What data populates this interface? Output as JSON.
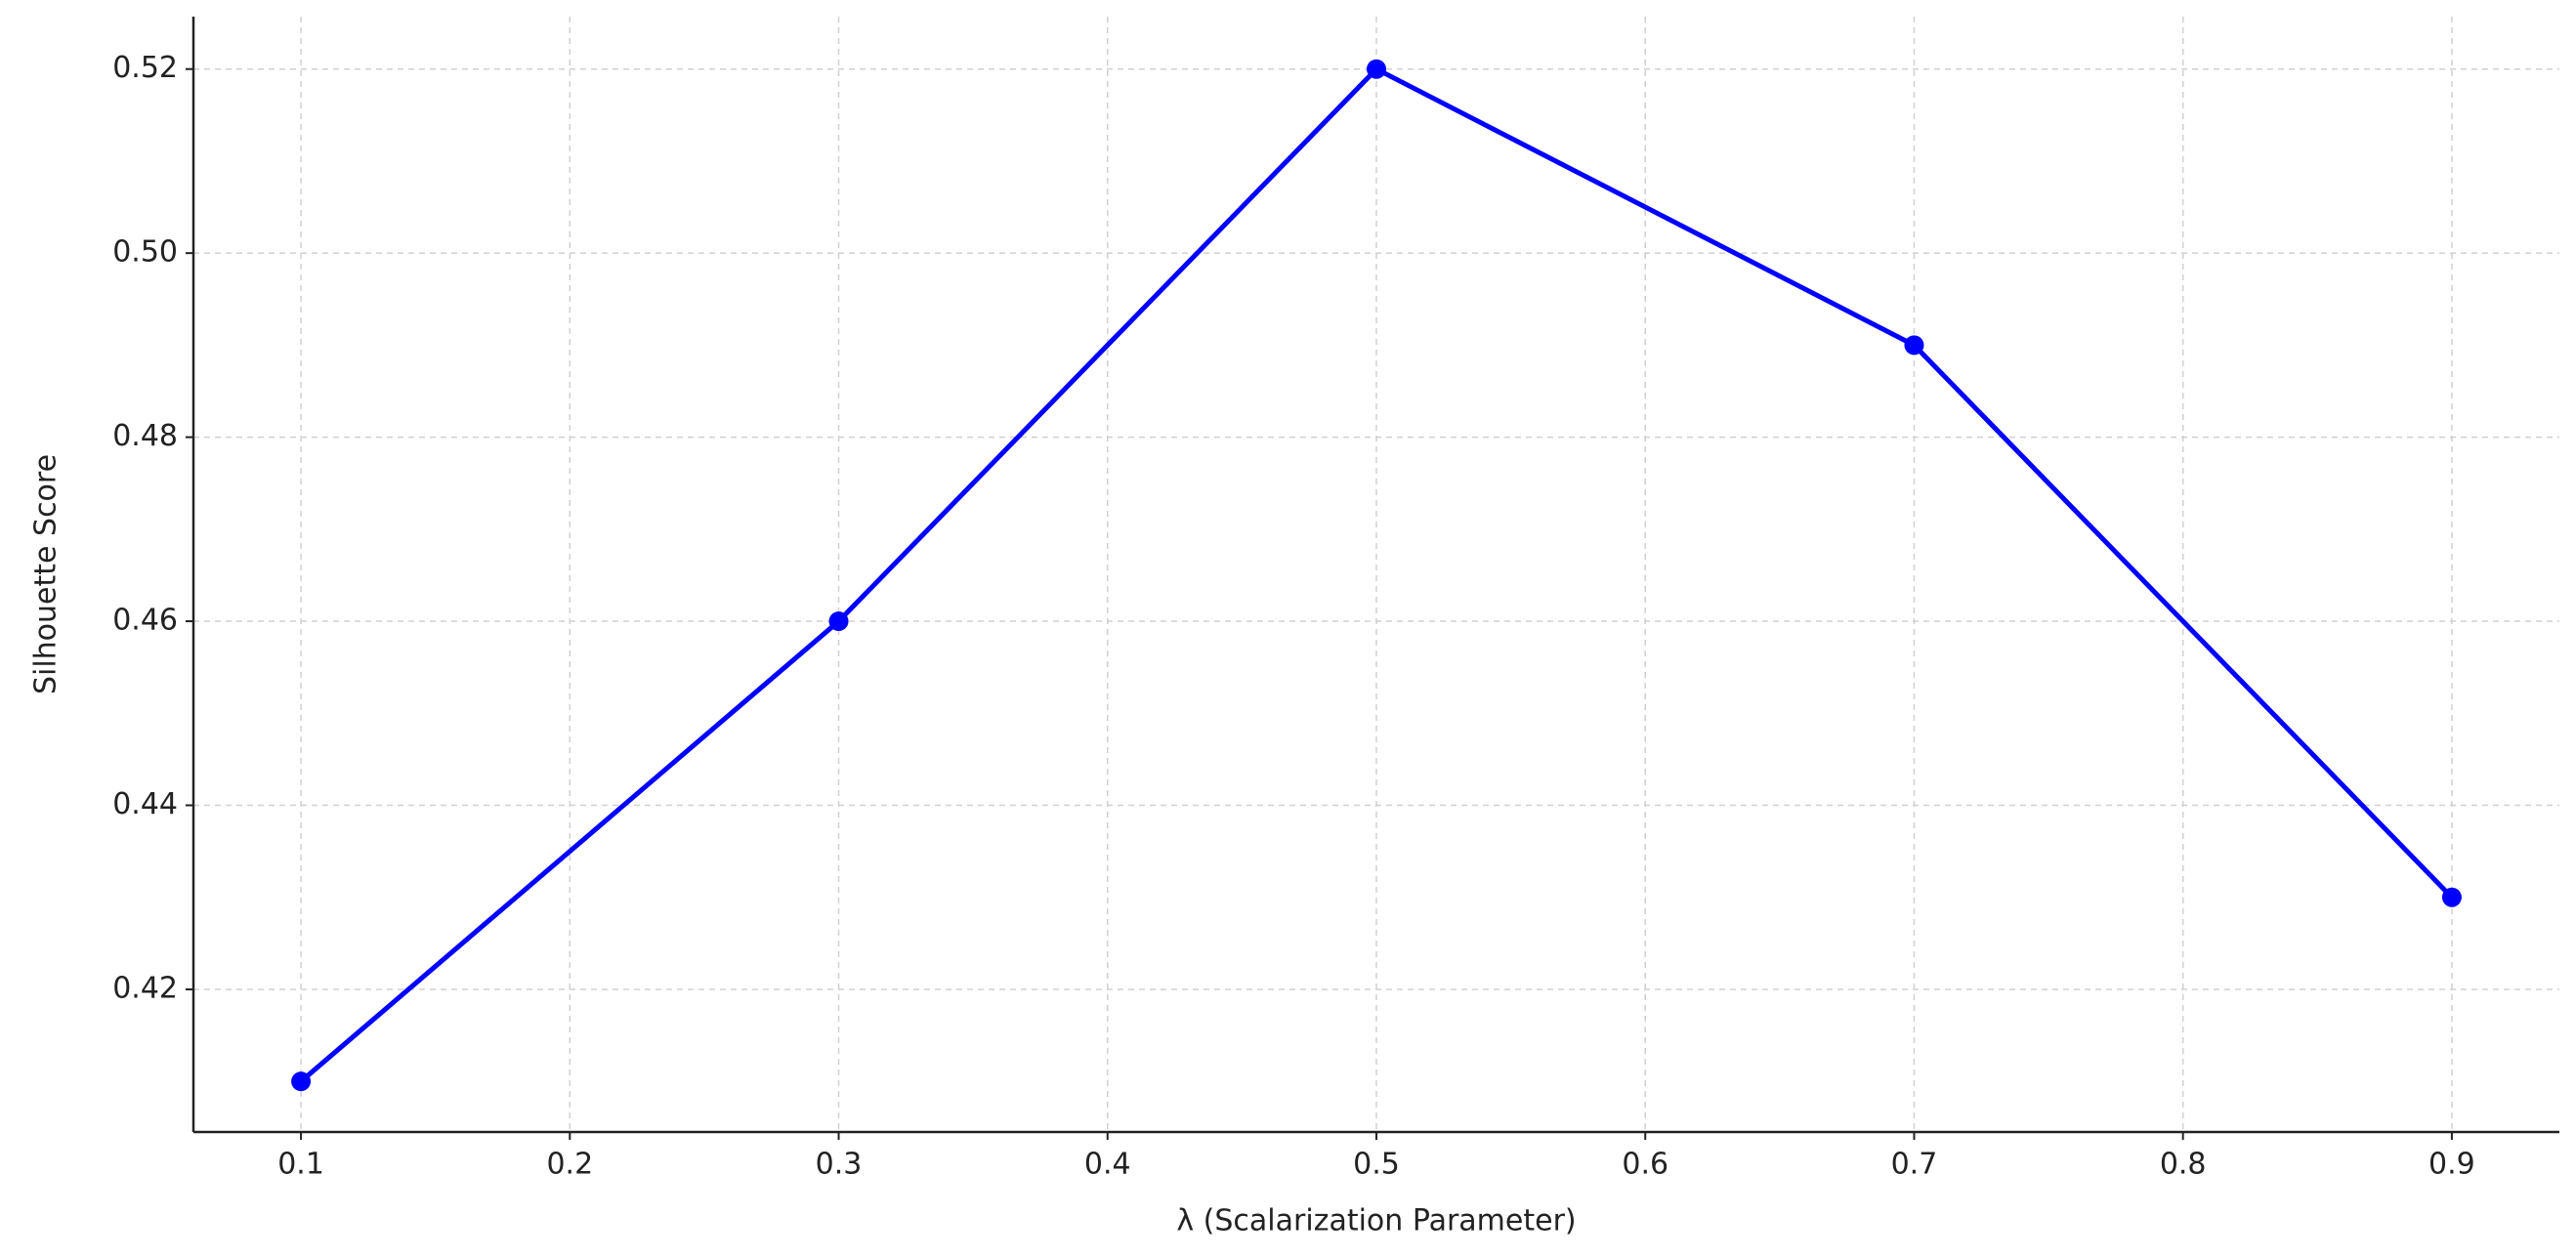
{
  "chart_data": {
    "type": "line",
    "x_label": "λ (Scalarization Parameter)",
    "y_label": "Silhouette Score",
    "x": [
      0.1,
      0.3,
      0.5,
      0.7,
      0.9
    ],
    "series": [
      {
        "color": "#0000ff",
        "values": [
          0.41,
          0.46,
          0.52,
          0.49,
          0.43
        ]
      }
    ],
    "xlim": [
      0.06,
      0.94
    ],
    "xticks": [
      0.1,
      0.2,
      0.3,
      0.4,
      0.5,
      0.6,
      0.7,
      0.8,
      0.9
    ],
    "ylim": [
      0.4045,
      0.5257
    ],
    "yticks": [
      0.42,
      0.44,
      0.46,
      0.48,
      {
        "value": 0.5,
        "label": "0.50"
      },
      0.52
    ],
    "grid": true
  }
}
